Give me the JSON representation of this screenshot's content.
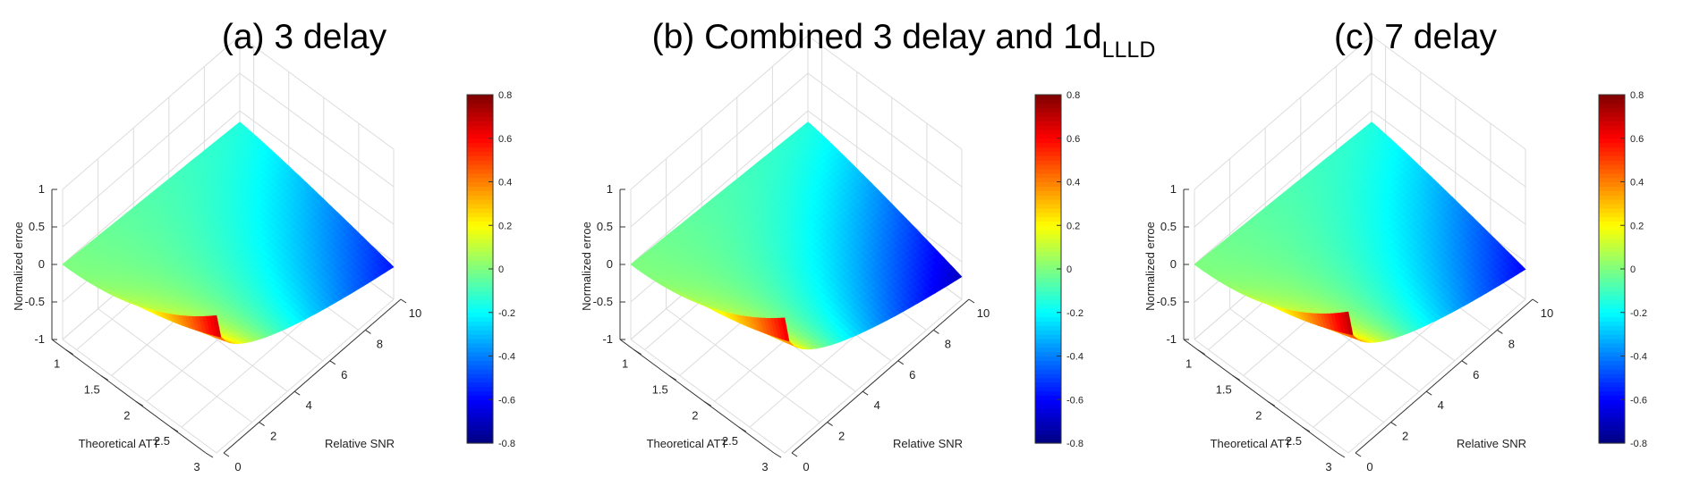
{
  "figure": {
    "colormap": "jet",
    "colormap_stops": [
      "#00007f",
      "#0000ff",
      "#007fff",
      "#00ffff",
      "#7fff7f",
      "#ffff00",
      "#ff7f00",
      "#ff0000",
      "#7f0000"
    ]
  },
  "chart_data": [
    {
      "type": "surface",
      "title": "(a) 3 delay",
      "title_sub": "",
      "xlabel": "Theoretical ATT",
      "ylabel": "Relative SNR",
      "zlabel": "Normalized erroe",
      "xlim": [
        0.8,
        3
      ],
      "ylim": [
        0,
        10
      ],
      "zlim": [
        -1,
        1
      ],
      "xticks": [
        1,
        1.5,
        2,
        2.5,
        3
      ],
      "yticks": [
        0,
        2,
        4,
        6,
        8,
        10
      ],
      "zticks": [
        -1,
        -0.5,
        0,
        0.5,
        1
      ],
      "colorbar": {
        "range": [
          -0.8,
          0.8
        ],
        "ticks": [
          -0.8,
          -0.6,
          -0.4,
          -0.2,
          0,
          0.2,
          0.4,
          0.6,
          0.8
        ]
      },
      "corners": {
        "x_min_y_min": 0.0,
        "x_min_y_max": -0.15,
        "x_max_y_min": 0.83,
        "x_max_y_max": -0.57
      },
      "curvature": {
        "x_max_edge": 2.6,
        "y_min_edge": 1.3,
        "x_min_edge": 1.0,
        "y_max_edge": 1.0
      }
    },
    {
      "type": "surface",
      "title": "(b) Combined 3 delay and 1d",
      "title_sub": "LLLD",
      "xlabel": "Theoretical ATT",
      "ylabel": "Relative SNR",
      "zlabel": "Normalized erroe",
      "xlim": [
        0.8,
        3
      ],
      "ylim": [
        0,
        10
      ],
      "zlim": [
        -1,
        1
      ],
      "xticks": [
        1,
        1.5,
        2,
        2.5,
        3
      ],
      "yticks": [
        0,
        2,
        4,
        6,
        8,
        10
      ],
      "zticks": [
        -1,
        -0.5,
        0,
        0.5,
        1
      ],
      "colorbar": {
        "range": [
          -0.8,
          0.8
        ],
        "ticks": [
          -0.8,
          -0.6,
          -0.4,
          -0.2,
          0,
          0.2,
          0.4,
          0.6,
          0.8
        ]
      },
      "corners": {
        "x_min_y_min": 0.0,
        "x_min_y_max": -0.15,
        "x_max_y_min": 0.8,
        "x_max_y_max": -0.7
      },
      "curvature": {
        "x_max_edge": 2.6,
        "y_min_edge": 1.3,
        "x_min_edge": 1.0,
        "y_max_edge": 1.0
      }
    },
    {
      "type": "surface",
      "title": "(c) 7 delay",
      "title_sub": "",
      "xlabel": "Theoretical ATT",
      "ylabel": "Relative SNR",
      "zlabel": "Normalized erroe",
      "xlim": [
        0.8,
        3
      ],
      "ylim": [
        0,
        10
      ],
      "zlim": [
        -1,
        1
      ],
      "xticks": [
        1,
        1.5,
        2,
        2.5,
        3
      ],
      "yticks": [
        0,
        2,
        4,
        6,
        8,
        10
      ],
      "zticks": [
        -1,
        -0.5,
        0,
        0.5,
        1
      ],
      "colorbar": {
        "range": [
          -0.8,
          0.8
        ],
        "ticks": [
          -0.8,
          -0.6,
          -0.4,
          -0.2,
          0,
          0.2,
          0.4,
          0.6,
          0.8
        ]
      },
      "corners": {
        "x_min_y_min": 0.0,
        "x_min_y_max": -0.15,
        "x_max_y_min": 0.88,
        "x_max_y_max": -0.6
      },
      "curvature": {
        "x_max_edge": 2.6,
        "y_min_edge": 1.3,
        "x_min_edge": 1.0,
        "y_max_edge": 1.0
      }
    }
  ]
}
